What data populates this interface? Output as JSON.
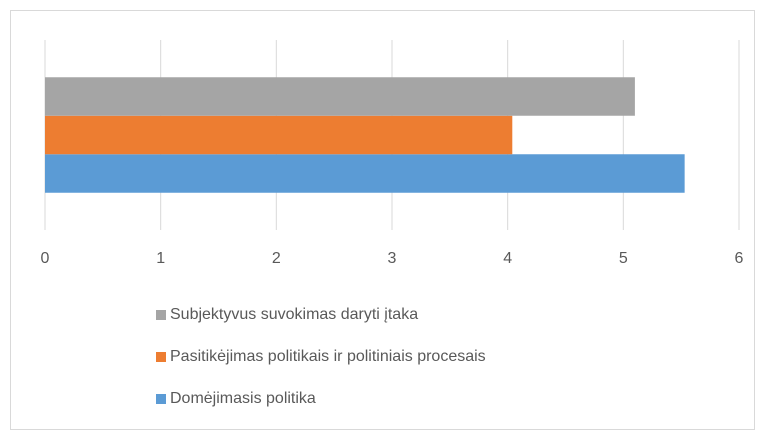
{
  "chart_data": {
    "type": "bar",
    "orientation": "horizontal",
    "categories": [
      null
    ],
    "series": [
      {
        "name": "Domėjimasis politika",
        "color": "#5b9bd5",
        "values": [
          5.53
        ]
      },
      {
        "name": "Pasitikėjimas politikais ir politiniais procesais",
        "color": "#ed7d31",
        "values": [
          4.04
        ]
      },
      {
        "name": "Subjektyvus suvokimas daryti įtaka",
        "color": "#a5a5a5",
        "values": [
          5.1
        ]
      }
    ],
    "xlim": [
      0,
      6
    ],
    "xticks": [
      0,
      1,
      2,
      3,
      4,
      5,
      6
    ],
    "grid": true,
    "legend": "bottom"
  }
}
